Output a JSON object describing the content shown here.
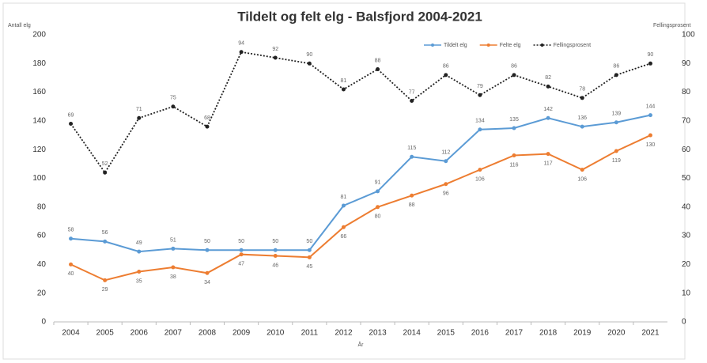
{
  "chart_data": {
    "type": "line",
    "title": "Tildelt og felt elg - Balsfjord 2004-2021",
    "ylabel": "Antall elg",
    "y2label": "Fellingsprosent",
    "xlabel": "År",
    "categories": [
      "2004",
      "2005",
      "2006",
      "2007",
      "2008",
      "2009",
      "2010",
      "2011",
      "2012",
      "2013",
      "2014",
      "2015",
      "2016",
      "2017",
      "2018",
      "2019",
      "2020",
      "2021"
    ],
    "series": [
      {
        "name": "Tildelt elg",
        "color": "#5b9bd5",
        "axis": "y",
        "marker": "circle",
        "dash": false,
        "label_side": "above",
        "values": [
          58,
          56,
          49,
          51,
          50,
          50,
          50,
          50,
          81,
          91,
          115,
          112,
          134,
          135,
          142,
          136,
          139,
          144
        ]
      },
      {
        "name": "Felte elg",
        "color": "#ed7d31",
        "axis": "y",
        "marker": "circle",
        "dash": false,
        "label_side": "below",
        "values": [
          40,
          29,
          35,
          38,
          34,
          47,
          46,
          45,
          66,
          80,
          88,
          96,
          106,
          116,
          117,
          106,
          119,
          130
        ]
      },
      {
        "name": "Fellingsprosent",
        "color": "#222222",
        "axis": "y2",
        "marker": "circle",
        "dash": true,
        "label_side": "above",
        "values": [
          69,
          52,
          71,
          75,
          68,
          94,
          92,
          90,
          81,
          88,
          77,
          86,
          79,
          86,
          82,
          78,
          86,
          90
        ]
      }
    ],
    "ylim": [
      0,
      200
    ],
    "yticks": [
      0,
      20,
      40,
      60,
      80,
      100,
      120,
      140,
      160,
      180,
      200
    ],
    "y2lim": [
      0,
      100
    ],
    "y2ticks": [
      0,
      10,
      20,
      30,
      40,
      50,
      60,
      70,
      80,
      90,
      100
    ],
    "grid": false,
    "legend": "top-right"
  }
}
